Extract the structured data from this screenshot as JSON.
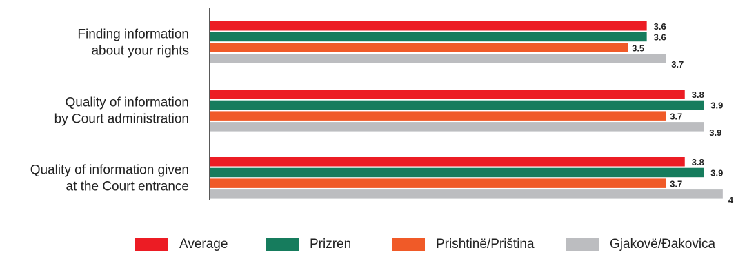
{
  "chart_data": {
    "type": "bar",
    "orientation": "horizontal",
    "categories": [
      [
        "Finding information",
        "about your rights"
      ],
      [
        "Quality of information",
        "by Court administration"
      ],
      [
        "Quality of information given",
        "at the Court entrance"
      ]
    ],
    "series": [
      {
        "name": "Average",
        "color": "#ec1c24",
        "values": [
          3.6,
          3.8,
          3.8
        ]
      },
      {
        "name": "Prizren",
        "color": "#167c5d",
        "values": [
          3.6,
          3.9,
          3.9
        ]
      },
      {
        "name": "Prishtinë/Priština",
        "color": "#f05a28",
        "values": [
          3.5,
          3.7,
          3.7
        ]
      },
      {
        "name": "Gjakovë/Đakovica",
        "color": "#bcbdc0",
        "values": [
          3.7,
          3.9,
          4
        ]
      }
    ],
    "xlim": [
      0,
      4
    ],
    "grid": false,
    "legend_position": "bottom"
  }
}
